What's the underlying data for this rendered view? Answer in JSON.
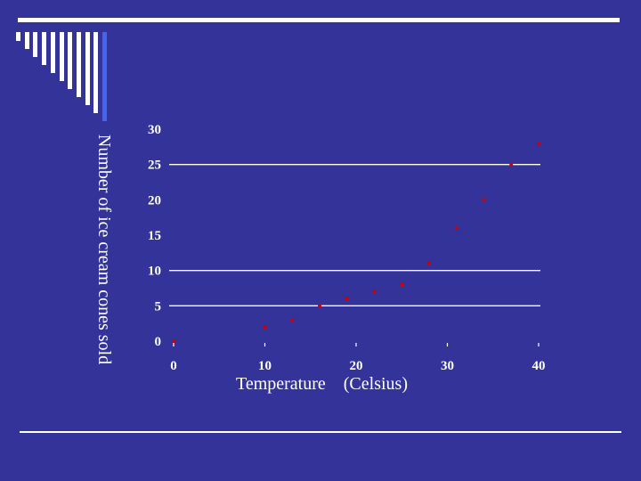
{
  "slide": {
    "background": "#333399",
    "rule_color": "#ffffff",
    "deco_bar_colors": [
      "#ffffff",
      "#ffffff",
      "#ffffff",
      "#ffffff",
      "#ffffff",
      "#ffffff",
      "#ffffff",
      "#ffffff",
      "#ffffff",
      "#ffffff",
      "#4466ee"
    ]
  },
  "chart_data": {
    "type": "scatter",
    "ylabel": "Number of ice cream cones sold",
    "xlabel": "Temperature    (Celsius)",
    "xlim": [
      0,
      40
    ],
    "ylim": [
      0,
      30
    ],
    "x_ticks": [
      "0",
      "10",
      "20",
      "30",
      "40"
    ],
    "y_ticks": [
      "0",
      "5",
      "10",
      "15",
      "20",
      "25",
      "30"
    ],
    "gridlines_y": [
      5,
      10,
      25
    ],
    "point_color": "#cc0000",
    "text_color": "#ffffff",
    "points": [
      {
        "x": 0,
        "y": 0
      },
      {
        "x": 10,
        "y": 2
      },
      {
        "x": 13,
        "y": 3
      },
      {
        "x": 16,
        "y": 5
      },
      {
        "x": 19,
        "y": 6
      },
      {
        "x": 22,
        "y": 7
      },
      {
        "x": 25,
        "y": 8
      },
      {
        "x": 28,
        "y": 11
      },
      {
        "x": 31,
        "y": 16
      },
      {
        "x": 34,
        "y": 20
      },
      {
        "x": 37,
        "y": 25
      },
      {
        "x": 40,
        "y": 28
      }
    ]
  }
}
